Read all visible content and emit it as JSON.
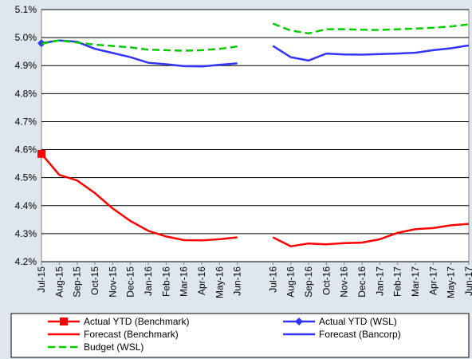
{
  "chart_data": {
    "type": "line",
    "categories": [
      "Jul-15",
      "Aug-15",
      "Sep-15",
      "Oct-15",
      "Nov-15",
      "Dec-15",
      "Jan-16",
      "Feb-16",
      "Mar-16",
      "Apr-16",
      "May-16",
      "Jun-16",
      null,
      "Jul-16",
      "Aug-16",
      "Sep-16",
      "Oct-16",
      "Nov-16",
      "Dec-16",
      "Jan-17",
      "Feb-17",
      "Mar-17",
      "Apr-17",
      "May-17",
      "Jun-17"
    ],
    "ylim": [
      4.2,
      5.1
    ],
    "yticks": [
      {
        "value": 4.2,
        "label": "4.2%"
      },
      {
        "value": 4.3,
        "label": "4.3%"
      },
      {
        "value": 4.4,
        "label": "4.4%"
      },
      {
        "value": 4.5,
        "label": "4.5%"
      },
      {
        "value": 4.6,
        "label": "4.6%"
      },
      {
        "value": 4.7,
        "label": "4.7%"
      },
      {
        "value": 4.8,
        "label": "4.8%"
      },
      {
        "value": 4.9,
        "label": "4.9%"
      },
      {
        "value": 5.0,
        "label": "5.0%"
      },
      {
        "value": 5.1,
        "label": "5.1%"
      }
    ],
    "grid": true,
    "series": [
      {
        "name": "Actual YTD (Benchmark)",
        "color": "#ff0000",
        "marker": "square",
        "values": [
          4.585,
          null,
          null,
          null,
          null,
          null,
          null,
          null,
          null,
          null,
          null,
          null,
          null,
          null,
          null,
          null,
          null,
          null,
          null,
          null,
          null,
          null,
          null,
          null,
          null
        ]
      },
      {
        "name": "Actual YTD (WSL)",
        "color": "#3333ff",
        "marker": "diamond",
        "values": [
          4.98,
          null,
          null,
          null,
          null,
          null,
          null,
          null,
          null,
          null,
          null,
          null,
          null,
          null,
          null,
          null,
          null,
          null,
          null,
          null,
          null,
          null,
          null,
          null,
          null
        ]
      },
      {
        "name": "Forecast (Benchmark)",
        "color": "#ff0000",
        "values": [
          4.585,
          4.51,
          4.49,
          4.445,
          4.39,
          4.345,
          4.31,
          4.29,
          4.277,
          4.276,
          4.28,
          4.287,
          null,
          4.287,
          4.255,
          4.265,
          4.262,
          4.266,
          4.268,
          4.28,
          4.303,
          4.316,
          4.32,
          4.33,
          4.335
        ]
      },
      {
        "name": "Forecast (Bancorp)",
        "color": "#3333ff",
        "values": [
          4.98,
          4.99,
          4.985,
          4.96,
          4.945,
          4.93,
          4.91,
          4.905,
          4.898,
          4.897,
          4.903,
          4.908,
          null,
          4.97,
          4.93,
          4.918,
          4.943,
          4.94,
          4.939,
          4.941,
          4.943,
          4.946,
          4.955,
          4.962,
          4.972
        ]
      },
      {
        "name": "Budget (WSL)",
        "color": "#00cc00",
        "dash": true,
        "values": [
          4.978,
          4.99,
          4.982,
          4.975,
          4.97,
          4.965,
          4.957,
          4.955,
          4.953,
          4.955,
          4.96,
          4.968,
          null,
          5.05,
          5.025,
          5.015,
          5.03,
          5.03,
          5.028,
          5.027,
          5.03,
          5.032,
          5.035,
          5.04,
          5.047
        ]
      }
    ]
  }
}
